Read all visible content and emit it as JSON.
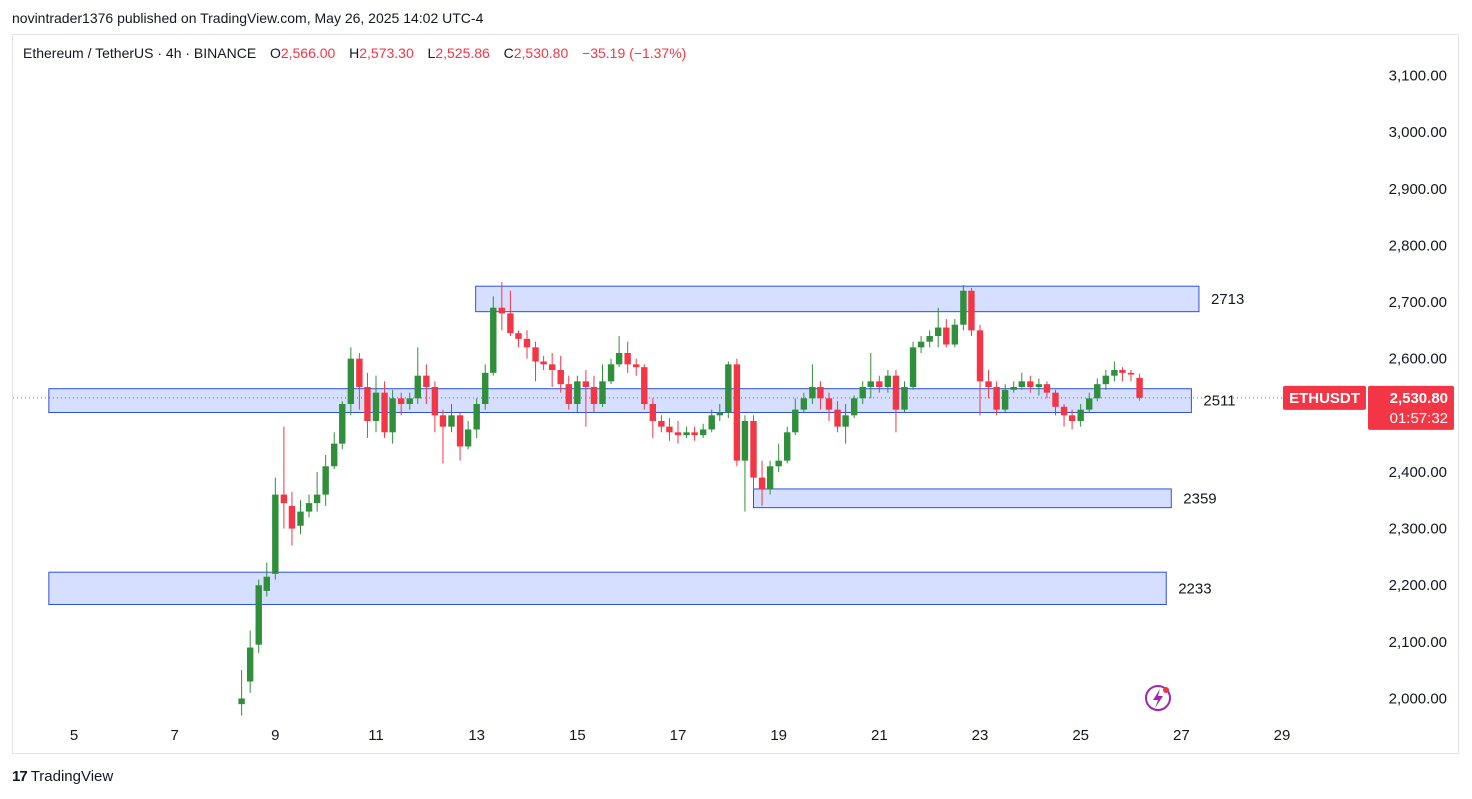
{
  "header": {
    "published": "novintrader1376 published on TradingView.com, May 26, 2025 14:02 UTC-4"
  },
  "legend": {
    "symbol": "Ethereum / TetherUS · 4h · BINANCE",
    "o_label": "O",
    "o_value": "2,566.00",
    "h_label": "H",
    "h_value": "2,573.30",
    "l_label": "L",
    "l_value": "2,525.86",
    "c_label": "C",
    "c_value": "2,530.80",
    "change": "−35.19 (−1.37%)"
  },
  "footer": {
    "logo_text": "TradingView",
    "logo_mark": "17"
  },
  "price_tag": {
    "symbol": "ETHUSDT",
    "price": "2,530.80",
    "countdown": "01:57:32"
  },
  "colors": {
    "up": "#2f8f3a",
    "down": "#f23645",
    "zone_fill": "#d1dcff",
    "zone_stroke": "#2c52e0"
  },
  "chart_data": {
    "type": "candlestick",
    "title": "Ethereum / TetherUS · 4h · BINANCE",
    "ylim": [
      1970,
      3150
    ],
    "y_ticks": [
      2000,
      2100,
      2200,
      2300,
      2400,
      2500,
      2600,
      2700,
      2800,
      2900,
      3000,
      3100
    ],
    "y_tick_labels": [
      "2,000.00",
      "2,100.00",
      "2,200.00",
      "2,300.00",
      "2,400.00",
      "2,500.00",
      "2,600.00",
      "2,700.00",
      "2,800.00",
      "2,900.00",
      "3,000.00",
      "3,100.00"
    ],
    "xlim": [
      4.5,
      29.5
    ],
    "x_ticks": [
      5,
      7,
      9,
      11,
      13,
      15,
      17,
      19,
      21,
      23,
      25,
      27,
      29
    ],
    "x_tick_labels": [
      "5",
      "7",
      "9",
      "11",
      "13",
      "15",
      "17",
      "19",
      "21",
      "23",
      "25",
      "27",
      "29"
    ],
    "last_price": 2530.8,
    "zones": [
      {
        "label": "2713",
        "x0": 12.98,
        "x1": 27.35,
        "y_low": 2683,
        "y_high": 2728
      },
      {
        "label": "2511",
        "x0": 4.5,
        "x1": 27.2,
        "y_low": 2505,
        "y_high": 2547
      },
      {
        "label": "2359",
        "x0": 18.5,
        "x1": 26.8,
        "y_low": 2337,
        "y_high": 2370
      },
      {
        "label": "2233",
        "x0": 4.5,
        "x1": 26.7,
        "y_low": 2166,
        "y_high": 2223
      }
    ],
    "candles": [
      [
        8.33,
        1990,
        2000,
        1970,
        2050
      ],
      [
        8.5,
        2030,
        2090,
        2010,
        2120
      ],
      [
        8.67,
        2095,
        2200,
        2080,
        2210
      ],
      [
        8.83,
        2190,
        2215,
        2180,
        2240
      ],
      [
        9.0,
        2220,
        2360,
        2210,
        2390
      ],
      [
        9.17,
        2360,
        2345,
        2300,
        2480
      ],
      [
        9.33,
        2340,
        2300,
        2270,
        2365
      ],
      [
        9.5,
        2305,
        2330,
        2290,
        2350
      ],
      [
        9.67,
        2330,
        2345,
        2320,
        2360
      ],
      [
        9.83,
        2345,
        2360,
        2330,
        2400
      ],
      [
        10.0,
        2360,
        2410,
        2340,
        2430
      ],
      [
        10.17,
        2410,
        2450,
        2405,
        2470
      ],
      [
        10.33,
        2450,
        2520,
        2440,
        2525
      ],
      [
        10.5,
        2520,
        2600,
        2500,
        2620
      ],
      [
        10.67,
        2600,
        2550,
        2510,
        2610
      ],
      [
        10.83,
        2550,
        2490,
        2460,
        2575
      ],
      [
        11.0,
        2490,
        2540,
        2470,
        2570
      ],
      [
        11.17,
        2540,
        2470,
        2460,
        2560
      ],
      [
        11.33,
        2470,
        2530,
        2450,
        2545
      ],
      [
        11.5,
        2530,
        2520,
        2500,
        2540
      ],
      [
        11.67,
        2520,
        2530,
        2510,
        2540
      ],
      [
        11.83,
        2530,
        2570,
        2520,
        2620
      ],
      [
        12.0,
        2570,
        2550,
        2520,
        2590
      ],
      [
        12.17,
        2550,
        2500,
        2470,
        2560
      ],
      [
        12.33,
        2500,
        2480,
        2415,
        2510
      ],
      [
        12.5,
        2480,
        2500,
        2470,
        2520
      ],
      [
        12.67,
        2500,
        2445,
        2420,
        2505
      ],
      [
        12.83,
        2445,
        2475,
        2440,
        2490
      ],
      [
        13.0,
        2475,
        2520,
        2460,
        2530
      ],
      [
        13.17,
        2520,
        2575,
        2510,
        2590
      ],
      [
        13.33,
        2575,
        2690,
        2570,
        2710
      ],
      [
        13.5,
        2690,
        2680,
        2650,
        2735
      ],
      [
        13.67,
        2680,
        2645,
        2640,
        2720
      ],
      [
        13.83,
        2645,
        2635,
        2620,
        2650
      ],
      [
        14.0,
        2635,
        2620,
        2600,
        2650
      ],
      [
        14.17,
        2620,
        2595,
        2560,
        2630
      ],
      [
        14.33,
        2595,
        2590,
        2580,
        2605
      ],
      [
        14.5,
        2590,
        2580,
        2550,
        2610
      ],
      [
        14.67,
        2580,
        2555,
        2540,
        2605
      ],
      [
        14.83,
        2555,
        2520,
        2510,
        2570
      ],
      [
        15.0,
        2520,
        2560,
        2505,
        2570
      ],
      [
        15.17,
        2560,
        2550,
        2480,
        2580
      ],
      [
        15.33,
        2550,
        2520,
        2505,
        2570
      ],
      [
        15.5,
        2520,
        2560,
        2515,
        2590
      ],
      [
        15.67,
        2560,
        2590,
        2555,
        2600
      ],
      [
        15.83,
        2590,
        2610,
        2585,
        2640
      ],
      [
        16.0,
        2610,
        2590,
        2575,
        2630
      ],
      [
        16.17,
        2590,
        2585,
        2570,
        2600
      ],
      [
        16.33,
        2585,
        2520,
        2510,
        2590
      ],
      [
        16.5,
        2520,
        2490,
        2460,
        2530
      ],
      [
        16.67,
        2490,
        2480,
        2470,
        2500
      ],
      [
        16.83,
        2480,
        2470,
        2455,
        2495
      ],
      [
        17.0,
        2470,
        2465,
        2450,
        2490
      ],
      [
        17.17,
        2465,
        2470,
        2460,
        2480
      ],
      [
        17.33,
        2470,
        2465,
        2455,
        2480
      ],
      [
        17.5,
        2465,
        2475,
        2460,
        2485
      ],
      [
        17.67,
        2475,
        2500,
        2470,
        2510
      ],
      [
        17.83,
        2500,
        2505,
        2490,
        2520
      ],
      [
        18.0,
        2505,
        2590,
        2495,
        2595
      ],
      [
        18.17,
        2590,
        2420,
        2410,
        2600
      ],
      [
        18.33,
        2420,
        2490,
        2330,
        2500
      ],
      [
        18.5,
        2490,
        2390,
        2370,
        2500
      ],
      [
        18.67,
        2390,
        2370,
        2340,
        2420
      ],
      [
        18.83,
        2370,
        2410,
        2360,
        2420
      ],
      [
        19.0,
        2410,
        2420,
        2400,
        2450
      ],
      [
        19.17,
        2420,
        2470,
        2415,
        2480
      ],
      [
        19.33,
        2470,
        2510,
        2465,
        2530
      ],
      [
        19.5,
        2510,
        2530,
        2505,
        2540
      ],
      [
        19.67,
        2530,
        2550,
        2520,
        2590
      ],
      [
        19.83,
        2550,
        2530,
        2510,
        2560
      ],
      [
        20.0,
        2530,
        2510,
        2490,
        2540
      ],
      [
        20.17,
        2510,
        2480,
        2470,
        2525
      ],
      [
        20.33,
        2480,
        2500,
        2450,
        2520
      ],
      [
        20.5,
        2500,
        2530,
        2495,
        2535
      ],
      [
        20.67,
        2530,
        2550,
        2520,
        2560
      ],
      [
        20.83,
        2550,
        2560,
        2530,
        2610
      ],
      [
        21.0,
        2560,
        2550,
        2540,
        2570
      ],
      [
        21.17,
        2550,
        2570,
        2540,
        2580
      ],
      [
        21.33,
        2570,
        2510,
        2470,
        2580
      ],
      [
        21.5,
        2510,
        2550,
        2505,
        2560
      ],
      [
        21.67,
        2550,
        2620,
        2545,
        2630
      ],
      [
        21.83,
        2620,
        2630,
        2610,
        2640
      ],
      [
        22.0,
        2630,
        2640,
        2620,
        2650
      ],
      [
        22.17,
        2640,
        2655,
        2620,
        2690
      ],
      [
        22.33,
        2655,
        2625,
        2620,
        2670
      ],
      [
        22.5,
        2625,
        2660,
        2620,
        2670
      ],
      [
        22.67,
        2660,
        2720,
        2650,
        2730
      ],
      [
        22.83,
        2720,
        2650,
        2640,
        2725
      ],
      [
        23.0,
        2650,
        2560,
        2500,
        2660
      ],
      [
        23.17,
        2560,
        2550,
        2530,
        2580
      ],
      [
        23.33,
        2550,
        2510,
        2500,
        2560
      ],
      [
        23.5,
        2510,
        2545,
        2505,
        2555
      ],
      [
        23.67,
        2545,
        2550,
        2540,
        2560
      ],
      [
        23.83,
        2550,
        2560,
        2545,
        2575
      ],
      [
        24.0,
        2560,
        2550,
        2540,
        2570
      ],
      [
        24.17,
        2550,
        2555,
        2535,
        2565
      ],
      [
        24.33,
        2555,
        2540,
        2530,
        2560
      ],
      [
        24.5,
        2540,
        2515,
        2500,
        2545
      ],
      [
        24.67,
        2515,
        2500,
        2480,
        2520
      ],
      [
        24.83,
        2500,
        2490,
        2475,
        2510
      ],
      [
        25.0,
        2490,
        2510,
        2480,
        2520
      ],
      [
        25.17,
        2510,
        2530,
        2505,
        2540
      ],
      [
        25.33,
        2530,
        2555,
        2525,
        2565
      ],
      [
        25.5,
        2555,
        2570,
        2545,
        2580
      ],
      [
        25.67,
        2570,
        2580,
        2560,
        2595
      ],
      [
        25.83,
        2580,
        2575,
        2560,
        2585
      ],
      [
        26.0,
        2575,
        2572,
        2560,
        2580
      ],
      [
        26.17,
        2566,
        2530.8,
        2525.86,
        2573.3
      ]
    ]
  }
}
